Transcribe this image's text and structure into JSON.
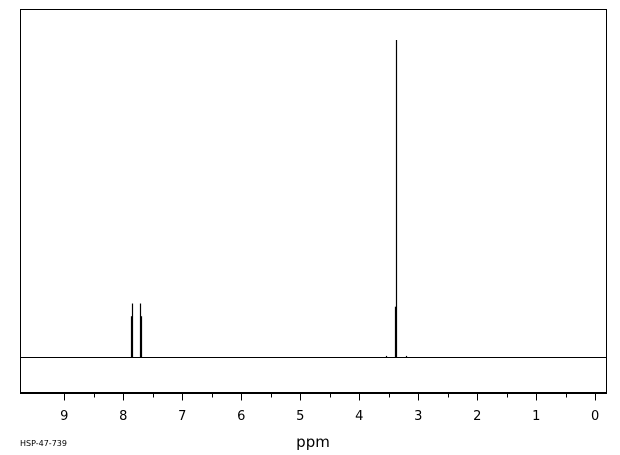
{
  "chart_data": {
    "type": "line",
    "xlabel": "ppm",
    "x_reversed": true,
    "xlim": [
      9.75,
      -0.2
    ],
    "x_ticks": [
      "9",
      "8",
      "7",
      "6",
      "5",
      "4",
      "3",
      "2",
      "1",
      "0"
    ],
    "x_minor_step": 0.5,
    "y_units": "relative intensity (baseline = 0, tallest peak = 1)",
    "peaks": [
      {
        "ppm": 7.87,
        "intensity": 0.13
      },
      {
        "ppm": 7.85,
        "intensity": 0.17
      },
      {
        "ppm": 7.72,
        "intensity": 0.17
      },
      {
        "ppm": 7.7,
        "intensity": 0.13
      },
      {
        "ppm": 3.55,
        "intensity": 0.005
      },
      {
        "ppm": 3.4,
        "intensity": 0.16
      },
      {
        "ppm": 3.38,
        "intensity": 1.0
      },
      {
        "ppm": 3.2,
        "intensity": 0.005
      }
    ],
    "grid": false,
    "line_color": "#000000"
  },
  "footer": {
    "code": "HSP-47-739"
  }
}
